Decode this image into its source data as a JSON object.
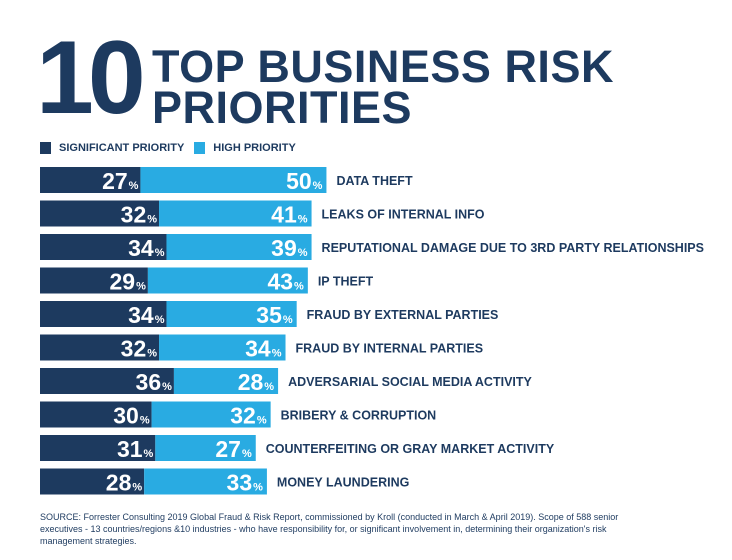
{
  "header": {
    "number": "10",
    "title_line_1": "TOP BUSINESS RISK",
    "title_line_2": "PRIORITIES"
  },
  "colors": {
    "significant": "#1d3a5f",
    "high": "#29abe2",
    "text": "#1d3a5f"
  },
  "chart_data": {
    "type": "bar",
    "stacked": true,
    "orientation": "horizontal",
    "categories": [
      "DATA THEFT",
      "LEAKS OF INTERNAL INFO",
      "REPUTATIONAL DAMAGE DUE TO 3RD PARTY RELATIONSHIPS",
      "IP THEFT",
      "FRAUD BY EXTERNAL PARTIES",
      "FRAUD BY INTERNAL PARTIES",
      "ADVERSARIAL SOCIAL MEDIA ACTIVITY",
      "BRIBERY & CORRUPTION",
      "COUNTERFEITING OR GRAY MARKET ACTIVITY",
      "MONEY LAUNDERING"
    ],
    "series": [
      {
        "name": "SIGNIFICANT PRIORITY",
        "values": [
          27,
          32,
          34,
          29,
          34,
          32,
          36,
          30,
          31,
          28
        ]
      },
      {
        "name": "HIGH PRIORITY",
        "values": [
          50,
          41,
          39,
          43,
          35,
          34,
          28,
          32,
          27,
          33
        ]
      }
    ],
    "unit": "%",
    "legend": "top-left"
  },
  "source": "SOURCE: Forrester Consulting 2019 Global Fraud & Risk Report, commissioned by Kroll (conducted in March & April 2019). Scope of 588 senior executives - 13 countries/regions &10 industries - who have responsibility for, or significant involvement in, determining their organization's risk management strategies."
}
